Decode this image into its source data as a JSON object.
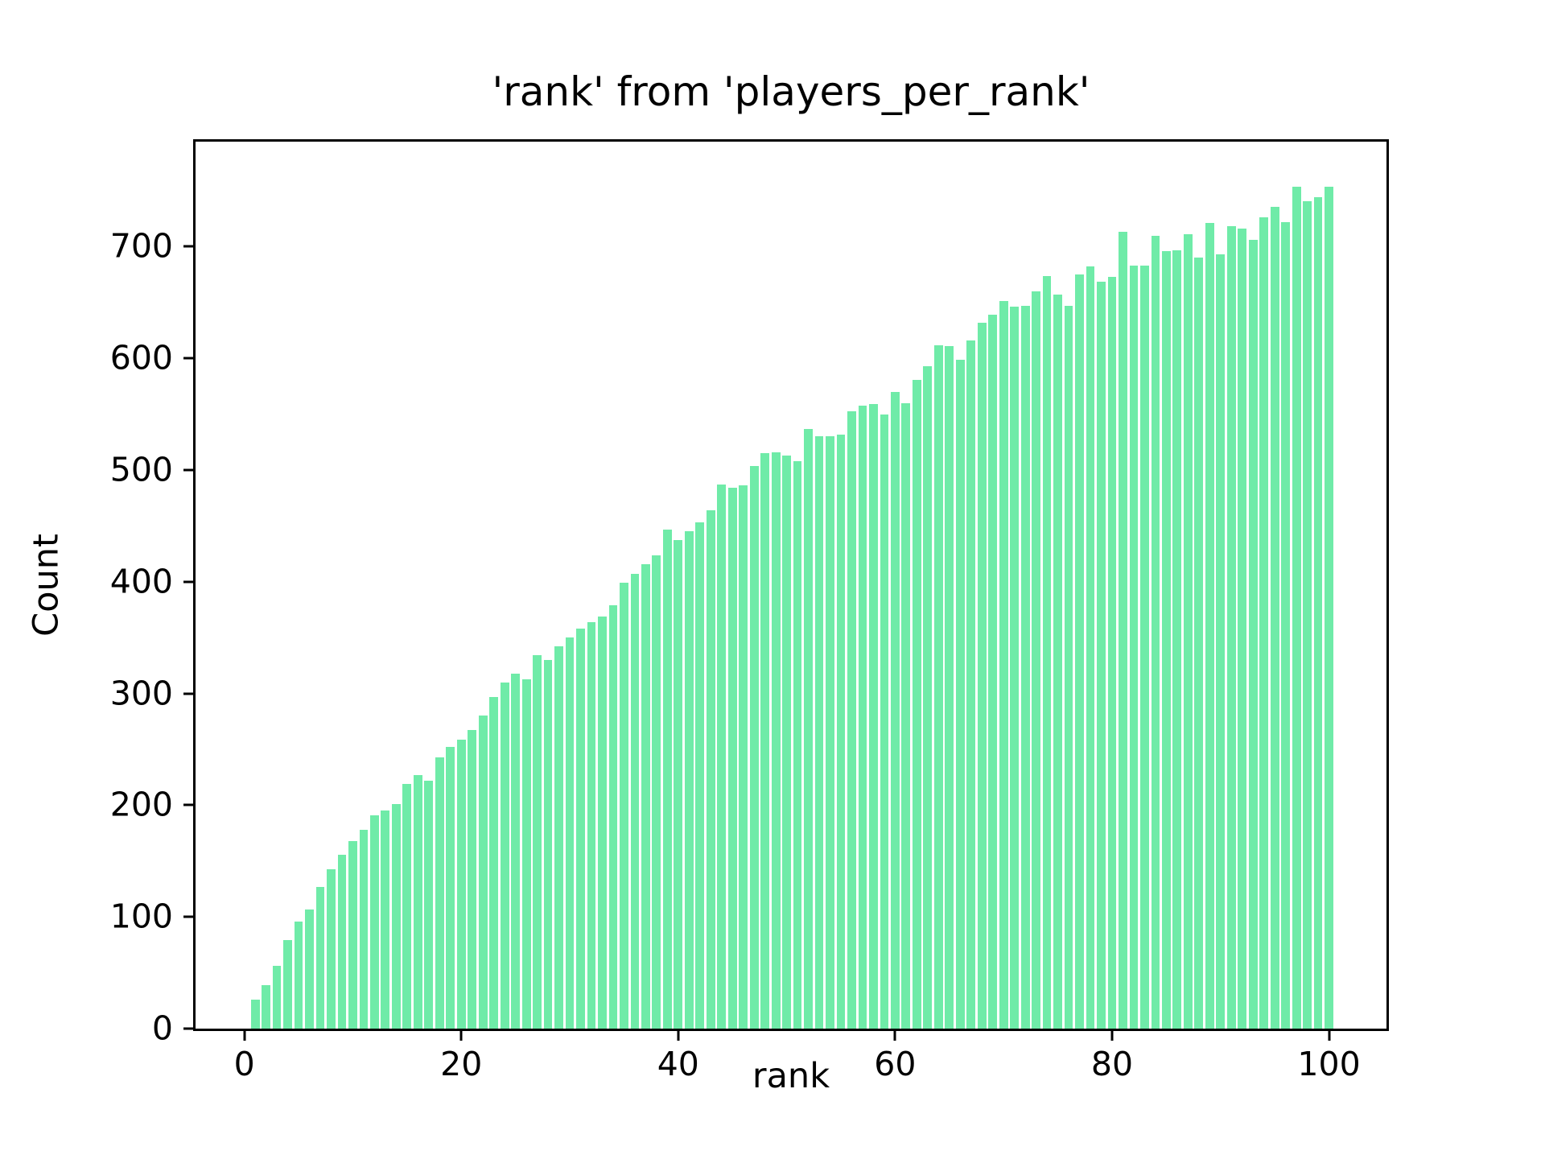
{
  "figure": {
    "title": "'rank' from 'players_per_rank'",
    "xlabel": "rank",
    "ylabel": "Count"
  },
  "chart_data": {
    "type": "bar",
    "title": "'rank' from 'players_per_rank'",
    "xlabel": "rank",
    "ylabel": "Count",
    "legend": null,
    "grid": false,
    "bar_color": "#6feba8",
    "bar_width": 0.8,
    "xlim": [
      -4.5,
      105.3
    ],
    "ylim": [
      0,
      794
    ],
    "x_ticks": [
      0,
      20,
      40,
      60,
      80,
      100
    ],
    "y_ticks": [
      0,
      100,
      200,
      300,
      400,
      500,
      600,
      700
    ],
    "x": [
      1,
      2,
      3,
      4,
      5,
      6,
      7,
      8,
      9,
      10,
      11,
      12,
      13,
      14,
      15,
      16,
      17,
      18,
      19,
      20,
      21,
      22,
      23,
      24,
      25,
      26,
      27,
      28,
      29,
      30,
      31,
      32,
      33,
      34,
      35,
      36,
      37,
      38,
      39,
      40,
      41,
      42,
      43,
      44,
      45,
      46,
      47,
      48,
      49,
      50,
      51,
      52,
      53,
      54,
      55,
      56,
      57,
      58,
      59,
      60,
      61,
      62,
      63,
      64,
      65,
      66,
      67,
      68,
      69,
      70,
      71,
      72,
      73,
      74,
      75,
      76,
      77,
      78,
      79,
      80,
      81,
      82,
      83,
      84,
      85,
      86,
      87,
      88,
      89,
      90,
      91,
      92,
      93,
      94,
      95,
      96,
      97,
      98,
      99,
      100
    ],
    "values": [
      26,
      39,
      56,
      79,
      96,
      107,
      127,
      143,
      156,
      168,
      178,
      191,
      195,
      201,
      219,
      227,
      222,
      243,
      252,
      259,
      267,
      280,
      297,
      310,
      318,
      313,
      334,
      330,
      342,
      350,
      358,
      364,
      369,
      379,
      399,
      407,
      416,
      424,
      447,
      437,
      445,
      453,
      464,
      487,
      484,
      486,
      504,
      515,
      516,
      513,
      508,
      537,
      530,
      530,
      532,
      553,
      558,
      559,
      550,
      570,
      560,
      581,
      593,
      612,
      611,
      599,
      616,
      632,
      639,
      651,
      646,
      647,
      660,
      674,
      657,
      647,
      675,
      682,
      669,
      673,
      713,
      683,
      683,
      710,
      696,
      697,
      711,
      690,
      721,
      693,
      718,
      716,
      706,
      726,
      736,
      722,
      754,
      741,
      744,
      754
    ]
  }
}
